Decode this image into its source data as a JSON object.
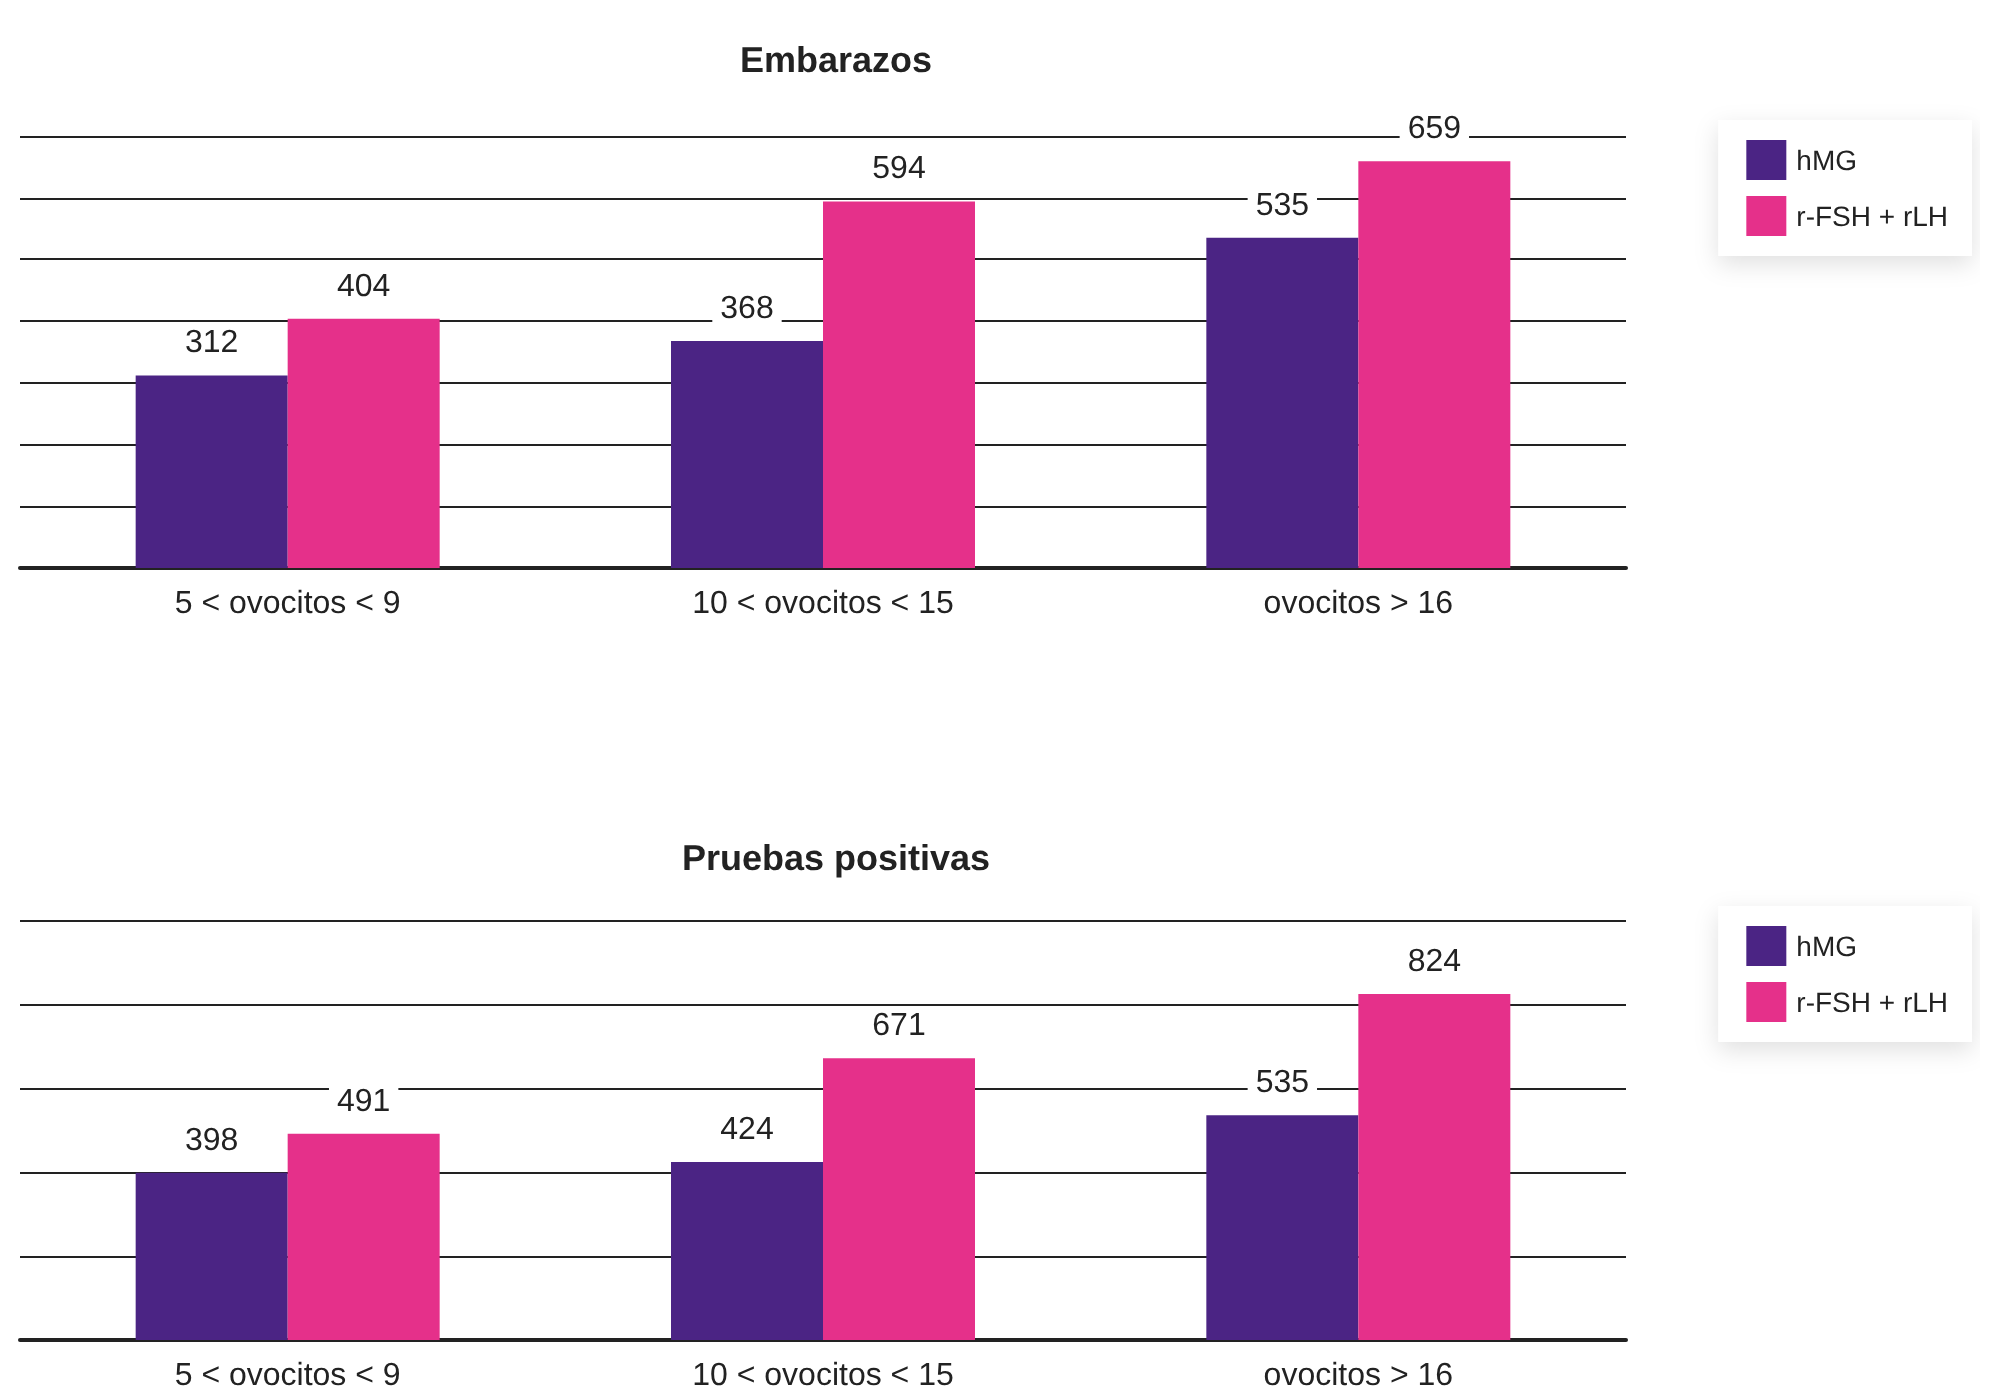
{
  "chart_data": [
    {
      "type": "bar",
      "title": "Embarazos",
      "categories": [
        "5 < ovocitos < 9",
        "10 < ovocitos < 15",
        "ovocitos > 16"
      ],
      "series": [
        {
          "name": "hMG",
          "color": "#4b2484",
          "values": [
            312,
            368,
            535
          ]
        },
        {
          "name": "r-FSH + rLH",
          "color": "#e5308a",
          "values": [
            404,
            594,
            659
          ]
        }
      ],
      "ylim": [
        0,
        700
      ],
      "yticks": [
        {
          "value": 0,
          "label": null
        },
        {
          "value": 100,
          "label": null
        },
        {
          "value": 200,
          "label": null
        },
        {
          "value": 300,
          "label": null
        },
        {
          "value": 400,
          "label": null
        },
        {
          "value": 500,
          "label": null
        },
        {
          "value": 600,
          "label": null
        },
        {
          "value": 700,
          "label": null
        }
      ],
      "grid": "y",
      "legend": "top right",
      "data_labels": true,
      "tick_labels": "x"
    },
    {
      "type": "bar",
      "title": "Pruebas positivas",
      "categories": [
        "5 < ovocitos < 9",
        "10 < ovocitos < 15",
        "ovocitos > 16"
      ],
      "series": [
        {
          "name": "hMG",
          "color": "#4b2484",
          "values": [
            398,
            424,
            535
          ]
        },
        {
          "name": "r-FSH + rLH",
          "color": "#e5308a",
          "values": [
            491,
            671,
            824
          ]
        }
      ],
      "ylim": [
        0,
        1000
      ],
      "yticks": [
        {
          "value": 0,
          "label": null
        },
        {
          "value": 200,
          "label": null
        },
        {
          "value": 400,
          "label": null
        },
        {
          "value": 600,
          "label": null
        },
        {
          "value": 800,
          "label": null
        },
        {
          "value": 1000,
          "label": null
        }
      ],
      "grid": "y",
      "legend": "top right",
      "data_labels": true,
      "tick_labels": "x"
    }
  ]
}
